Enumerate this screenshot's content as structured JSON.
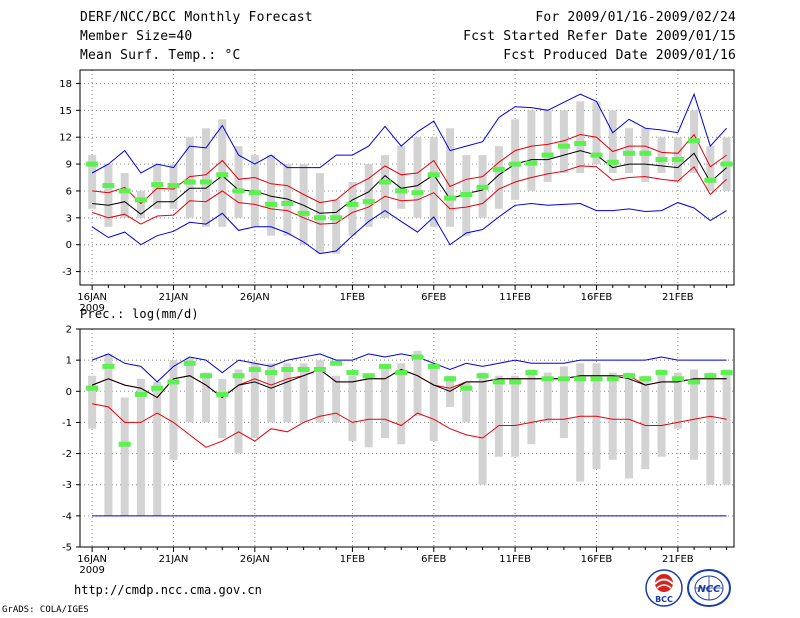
{
  "header": {
    "title": "DERF/NCC/BCC Monthly Forecast",
    "member_size": "Member Size=40",
    "variable": "Mean Surf. Temp.: °C",
    "period": "For 2009/01/16-2009/02/24",
    "refer_date": "Fcst Started Refer Date 2009/01/15",
    "produced_date": "Fcst Produced Date 2009/01/16"
  },
  "panel2_label": "Prec.: log(mm/d)",
  "footer": {
    "url": "http://cmdp.ncc.cma.gov.cn",
    "grads": "GrADS: COLA/IGES",
    "logo_bcc": "BCC",
    "logo_ncc": "NCC"
  },
  "colors": {
    "box": "#d3d3d3",
    "median": "#000000",
    "quartile": "#e8000b",
    "extreme": "#0000e0",
    "mean_marker": "#5cf050",
    "grid": "#888888"
  },
  "chart_data": [
    {
      "type": "box",
      "title": "Mean Surf. Temp.: °C",
      "x_tick_labels": [
        "16JAN",
        "21JAN",
        "26JAN",
        "1FEB",
        "6FEB",
        "11FEB",
        "16FEB",
        "21FEB"
      ],
      "x_tick_days": [
        1,
        6,
        11,
        17,
        22,
        27,
        32,
        37
      ],
      "year_label": "2009",
      "y_ticks": [
        -3,
        0,
        3,
        6,
        9,
        12,
        15,
        18
      ],
      "ylim": [
        -4.5,
        19.5
      ],
      "days": 40,
      "box_low": [
        4,
        2,
        3,
        3,
        4,
        4,
        3,
        2,
        2,
        3,
        2,
        1,
        1,
        0,
        -1,
        -1,
        1,
        2,
        3,
        4,
        3,
        2,
        2,
        1,
        3,
        4,
        5,
        6,
        7,
        8,
        8,
        9,
        8,
        8,
        7,
        8,
        7,
        8,
        6,
        6
      ],
      "box_high": [
        10,
        9,
        8,
        6,
        9,
        9,
        12,
        13,
        14,
        11,
        10,
        10,
        9,
        9,
        8,
        5,
        7,
        9,
        10,
        11,
        12,
        12,
        13,
        10,
        10,
        11,
        14,
        15,
        15,
        15,
        16,
        16,
        15,
        13,
        13,
        12,
        12,
        15,
        11,
        12
      ],
      "max": [
        8,
        9,
        10.5,
        8,
        9,
        8.6,
        11,
        10.8,
        13.3,
        10,
        9,
        10,
        8.6,
        8.6,
        8.6,
        10,
        10,
        11,
        13.2,
        11,
        12.6,
        13.8,
        10.5,
        11,
        11.5,
        14.2,
        15.4,
        15.3,
        15,
        15.9,
        16.8,
        16,
        12.5,
        14,
        13,
        12.8,
        12.5,
        16.8,
        11,
        13
      ],
      "q75": [
        6,
        5.8,
        6.4,
        4.6,
        6.3,
        6.2,
        7.6,
        7.8,
        9.4,
        7.3,
        7.5,
        6.8,
        6.6,
        5.6,
        4.7,
        5,
        6.5,
        7.4,
        8.8,
        7.8,
        8,
        9.4,
        6.5,
        7.3,
        7.6,
        9.2,
        10.5,
        11,
        11.2,
        11.6,
        12.3,
        12,
        10.4,
        11,
        11,
        10.3,
        10.2,
        12.3,
        8.7,
        10
      ],
      "median": [
        4.6,
        4.4,
        4.8,
        3.4,
        4.8,
        4.8,
        6.3,
        6.3,
        7.7,
        6.1,
        6,
        5.4,
        5.1,
        4.4,
        3.5,
        3.6,
        5,
        5.9,
        7.7,
        6.3,
        6.6,
        7.8,
        5.1,
        5.7,
        6.1,
        7.8,
        9,
        9.5,
        9.5,
        10,
        10.5,
        10,
        8.6,
        9,
        9,
        8.8,
        8.6,
        10.2,
        7,
        8.6
      ],
      "q25": [
        3.6,
        3,
        3.4,
        2.3,
        3.2,
        3.3,
        4.9,
        4.8,
        6,
        4.7,
        4.5,
        4,
        3.8,
        3,
        2.3,
        2.4,
        3.6,
        4.2,
        5.4,
        4.9,
        5,
        5.8,
        4,
        4.2,
        4.6,
        6.2,
        7,
        7.5,
        7.9,
        8.2,
        8.8,
        8.7,
        7.2,
        7.5,
        7.6,
        7.3,
        7.1,
        8.7,
        5.6,
        7.3
      ],
      "min": [
        2,
        0.8,
        1.4,
        0,
        1,
        1.5,
        2.5,
        2.3,
        3.5,
        1.6,
        2,
        2,
        1.3,
        0.3,
        -1,
        -0.7,
        1,
        2.6,
        3.8,
        2.6,
        1.4,
        3.1,
        0,
        1.3,
        1.7,
        3.1,
        4.4,
        4.6,
        4.4,
        4.5,
        4.6,
        3.8,
        3.8,
        4,
        3.7,
        3.8,
        4.7,
        4.1,
        2.7,
        3.8
      ],
      "mean": [
        9,
        6.6,
        6,
        5,
        6.7,
        6.6,
        7,
        7,
        7.8,
        6,
        5.8,
        4.5,
        4.6,
        3.5,
        3,
        3,
        4.5,
        4.8,
        7,
        6,
        5.8,
        7.8,
        5.2,
        5.6,
        6.4,
        8.4,
        9,
        9.1,
        10,
        11,
        11.3,
        10,
        9.2,
        10.2,
        10.2,
        9.5,
        9.5,
        11.6,
        7.2,
        9
      ]
    },
    {
      "type": "box",
      "title": "Prec.: log(mm/d)",
      "x_tick_labels": [
        "16JAN",
        "21JAN",
        "26JAN",
        "1FEB",
        "6FEB",
        "11FEB",
        "16FEB",
        "21FEB"
      ],
      "x_tick_days": [
        1,
        6,
        11,
        17,
        22,
        27,
        32,
        37
      ],
      "year_label": "2009",
      "y_ticks": [
        -5,
        -4,
        -3,
        -2,
        -1,
        0,
        1,
        2
      ],
      "ylim": [
        -5,
        2
      ],
      "days": 40,
      "box_low": [
        -1.2,
        -4,
        -4,
        -4,
        -4,
        -2.2,
        -1,
        -1,
        -1.5,
        -2,
        -1.5,
        -1,
        -1,
        -1,
        -1,
        -1,
        -1.6,
        -1.8,
        -1.5,
        -1.7,
        -0.8,
        -1.6,
        -0.5,
        -1,
        -3,
        -2.1,
        -2.1,
        -1.7,
        -1,
        -1.5,
        -2.9,
        -2.5,
        -2.2,
        -2.8,
        -2.5,
        -2.1,
        -1.2,
        -2.2,
        -3,
        -3
      ],
      "box_high": [
        0.5,
        1.2,
        -0.2,
        0.4,
        0.3,
        1,
        1.1,
        0.6,
        0.4,
        0.7,
        0.9,
        0.9,
        0.9,
        0.9,
        1,
        0.5,
        0.5,
        0.5,
        0.8,
        0.9,
        1.3,
        0.9,
        0.5,
        0.3,
        0.6,
        0.5,
        0.5,
        0.7,
        0.6,
        0.8,
        0.9,
        0.9,
        0.6,
        0.6,
        0.5,
        0.7,
        0.6,
        0.7,
        0.6,
        0.7
      ],
      "max": [
        1,
        1.2,
        0.9,
        0.8,
        0.3,
        0.8,
        1.1,
        1,
        0.6,
        1,
        0.9,
        0.8,
        1,
        1.1,
        1.2,
        1,
        1,
        1.2,
        1.1,
        1.2,
        1.1,
        0.9,
        0.7,
        0.9,
        0.8,
        0.9,
        1,
        0.9,
        0.9,
        0.9,
        1,
        1,
        1,
        1,
        1,
        1.1,
        1,
        1,
        1,
        1
      ],
      "q75": [
        0.2,
        0.4,
        0.2,
        0.1,
        -0.2,
        0.4,
        0.5,
        0.2,
        -0.2,
        0.2,
        0.4,
        0.2,
        0.4,
        0.5,
        0.7,
        0.3,
        0.3,
        0.4,
        0.4,
        0.7,
        0.5,
        0.2,
        0.1,
        0.3,
        0.3,
        0.4,
        0.4,
        0.4,
        0.4,
        0.4,
        0.5,
        0.5,
        0.5,
        0.5,
        0.2,
        0.3,
        0.3,
        0.4,
        0.4,
        0.4
      ],
      "median": [
        0.2,
        0.4,
        0.2,
        0.1,
        -0.2,
        0.4,
        0.5,
        0.2,
        -0.2,
        0.2,
        0.3,
        0.1,
        0.3,
        0.5,
        0.7,
        0.3,
        0.3,
        0.4,
        0.4,
        0.7,
        0.5,
        0.2,
        0,
        0.3,
        0.3,
        0.4,
        0.4,
        0.4,
        0.4,
        0.4,
        0.5,
        0.5,
        0.5,
        0.4,
        0.2,
        0.3,
        0.3,
        0.4,
        0.4,
        0.4
      ],
      "q25": [
        -0.4,
        -0.5,
        -1,
        -1,
        -0.7,
        -1,
        -1.4,
        -1.8,
        -1.6,
        -1.3,
        -1.6,
        -1.2,
        -1.3,
        -1,
        -0.8,
        -0.7,
        -1,
        -0.9,
        -0.9,
        -1.1,
        -0.7,
        -0.9,
        -1.2,
        -1.4,
        -1.5,
        -1.1,
        -1.1,
        -1,
        -0.9,
        -0.9,
        -0.8,
        -0.8,
        -0.9,
        -0.9,
        -1.1,
        -1.1,
        -1,
        -0.9,
        -0.8,
        -0.9
      ],
      "min": [
        -4,
        -4,
        -4,
        -4,
        -4,
        -4,
        -4,
        -4,
        -4,
        -4,
        -4,
        -4,
        -4,
        -4,
        -4,
        -4,
        -4,
        -4,
        -4,
        -4,
        -4,
        -4,
        -4,
        -4,
        -4,
        -4,
        -4,
        -4,
        -4,
        -4,
        -4,
        -4,
        -4,
        -4,
        -4,
        -4,
        -4,
        -4,
        -4,
        -4
      ],
      "mean": [
        0.1,
        0.8,
        -1.7,
        -0.1,
        0.1,
        0.3,
        0.9,
        0.5,
        -0.1,
        0.5,
        0.7,
        0.6,
        0.7,
        0.7,
        0.7,
        0.9,
        0.6,
        0.5,
        0.8,
        0.6,
        1.1,
        0.8,
        0.4,
        0.1,
        0.5,
        0.3,
        0.3,
        0.6,
        0.4,
        0.4,
        0.4,
        0.4,
        0.4,
        0.5,
        0.4,
        0.6,
        0.4,
        0.3,
        0.5,
        0.6
      ]
    }
  ]
}
